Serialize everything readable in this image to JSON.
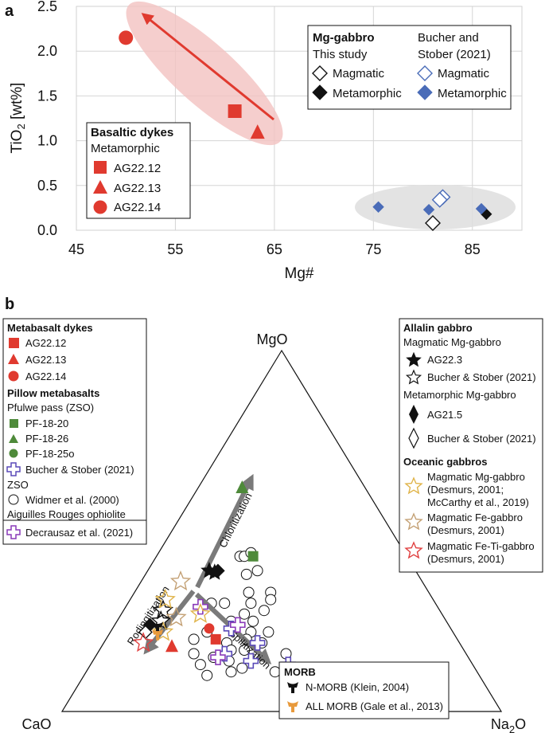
{
  "colors": {
    "basaltic": "#e03a2f",
    "pillow": "#4e8a3a",
    "bucher": "#4a6cb8",
    "mmg": "#e0b44a",
    "mfe": "#c4a175",
    "mfeti": "#e04040",
    "allmorb": "#e89a3c",
    "ellipse_red": "#f3c2c0",
    "ellipse_grey": "#dedede",
    "arrow_grey": "#7a7a7a"
  },
  "panel_a": {
    "label": "a",
    "chart_data": {
      "type": "scatter",
      "xlabel": "Mg#",
      "ylabel_main": "TiO",
      "ylabel_sub": "2",
      "ylabel_tail": " [wt%]",
      "xlim": [
        45,
        90
      ],
      "ylim": [
        0,
        2.5
      ],
      "xticks": [
        "45",
        "55",
        "65",
        "75",
        "85"
      ],
      "yticks": [
        "0.0",
        "0.5",
        "1.0",
        "1.5",
        "2.0",
        "2.5"
      ],
      "grid": true,
      "series": [
        {
          "name": "AG22.12",
          "marker": "square",
          "color": "#e03a2f",
          "points": [
            [
              61,
              1.33
            ]
          ]
        },
        {
          "name": "AG22.13",
          "marker": "triangle",
          "color": "#e03a2f",
          "points": [
            [
              63.3,
              1.09
            ]
          ]
        },
        {
          "name": "AG22.14",
          "marker": "circle",
          "color": "#e03a2f",
          "points": [
            [
              50,
              2.15
            ]
          ]
        },
        {
          "name": "This study Magmatic",
          "marker": "diamond-open",
          "color": "#111111",
          "points": [
            [
              81,
              0.08
            ]
          ]
        },
        {
          "name": "This study Metamorphic",
          "marker": "diamond-filled",
          "color": "#111111",
          "points": [
            [
              86.4,
              0.18
            ]
          ]
        },
        {
          "name": "Bucher and Stober (2021) Magmatic",
          "marker": "diamond-open",
          "color": "#4a6cb8",
          "points": [
            [
              82,
              0.37
            ],
            [
              81.7,
              0.34
            ]
          ]
        },
        {
          "name": "Bucher and Stober (2021) Metamorphic",
          "marker": "diamond-filled",
          "color": "#4a6cb8",
          "points": [
            [
              75.5,
              0.26
            ],
            [
              80.6,
              0.23
            ],
            [
              85.9,
              0.24
            ]
          ]
        }
      ],
      "legend_mg": {
        "title": "Mg-gabbro",
        "left_head": "This study",
        "right_head_1": "Bucher and",
        "right_head_2": "Stober (2021)",
        "magmatic": "Magmatic",
        "metamorphic": "Metamorphic"
      },
      "legend_basaltic": {
        "title": "Basaltic dykes",
        "subtitle": "Metamorphic",
        "items": [
          "AG22.12",
          "AG22.13",
          "AG22.14"
        ]
      }
    }
  },
  "panel_b": {
    "label": "b",
    "chart_data": {
      "type": "ternary",
      "vertices": {
        "top": "MgO",
        "left": "CaO",
        "right_main": "Na",
        "right_sub": "2",
        "right_tail": "O"
      },
      "arrows": [
        "Chloritization",
        "Rodingitization",
        "Spilitization"
      ],
      "ref_circles": [
        [
          0.43,
          0.38,
          0.19
        ],
        [
          0.43,
          0.37,
          0.2
        ],
        [
          0.44,
          0.35,
          0.21
        ],
        [
          0.39,
          0.36,
          0.25
        ],
        [
          0.38,
          0.39,
          0.23
        ],
        [
          0.33,
          0.36,
          0.31
        ],
        [
          0.31,
          0.37,
          0.32
        ],
        [
          0.33,
          0.41,
          0.26
        ],
        [
          0.3,
          0.42,
          0.28
        ],
        [
          0.28,
          0.4,
          0.32
        ],
        [
          0.3,
          0.48,
          0.22
        ],
        [
          0.27,
          0.45,
          0.28
        ],
        [
          0.25,
          0.44,
          0.31
        ],
        [
          0.25,
          0.49,
          0.26
        ],
        [
          0.22,
          0.46,
          0.32
        ],
        [
          0.22,
          0.42,
          0.36
        ],
        [
          0.2,
          0.48,
          0.32
        ],
        [
          0.19,
          0.45,
          0.36
        ],
        [
          0.17,
          0.5,
          0.33
        ],
        [
          0.19,
          0.53,
          0.28
        ],
        [
          0.17,
          0.53,
          0.3
        ],
        [
          0.15,
          0.58,
          0.27
        ],
        [
          0.16,
          0.62,
          0.22
        ],
        [
          0.13,
          0.62,
          0.25
        ],
        [
          0.14,
          0.55,
          0.31
        ],
        [
          0.12,
          0.53,
          0.35
        ],
        [
          0.11,
          0.56,
          0.33
        ],
        [
          0.1,
          0.62,
          0.28
        ],
        [
          0.11,
          0.46,
          0.43
        ],
        [
          0.16,
          0.41,
          0.43
        ],
        [
          0.3,
          0.51,
          0.19
        ],
        [
          0.22,
          0.56,
          0.22
        ],
        [
          0.2,
          0.6,
          0.2
        ]
      ],
      "points": [
        {
          "name": "AG22.12",
          "marker": "square",
          "color": "#e03a2f",
          "t": [
            0.2,
            0.55,
            0.25
          ]
        },
        {
          "name": "AG22.13",
          "marker": "triangle",
          "color": "#e03a2f",
          "t": [
            0.18,
            0.66,
            0.16
          ]
        },
        {
          "name": "AG22.14",
          "marker": "circle",
          "color": "#e03a2f",
          "t": [
            0.23,
            0.55,
            0.22
          ]
        },
        {
          "name": "PF-18-20",
          "marker": "square",
          "color": "#4e8a3a",
          "t": [
            0.43,
            0.35,
            0.22
          ]
        },
        {
          "name": "PF-18-26",
          "marker": "triangle",
          "color": "#4e8a3a",
          "t": [
            0.62,
            0.28,
            0.1
          ]
        },
        {
          "name": "AG22.3",
          "marker": "star-filled",
          "color": "#111111",
          "t": [
            0.39,
            0.47,
            0.14
          ]
        },
        {
          "name": "AG22.3",
          "marker": "star-filled",
          "color": "#111111",
          "t": [
            0.385,
            0.46,
            0.155
          ]
        },
        {
          "name": "AG21.5",
          "marker": "diamond-filled",
          "color": "#111111",
          "t": [
            0.39,
            0.45,
            0.16
          ]
        },
        {
          "name": "AG21.5",
          "marker": "diamond-filled",
          "color": "#111111",
          "t": [
            0.24,
            0.68,
            0.08
          ]
        },
        {
          "name": "Bucher & Stober (2021) magmatic",
          "marker": "star-open",
          "color": "#111111",
          "t": [
            0.28,
            0.63,
            0.09
          ]
        },
        {
          "name": "Bucher & Stober (2021) magmatic",
          "marker": "star-open",
          "color": "#111111",
          "t": [
            0.25,
            0.65,
            0.1
          ]
        },
        {
          "name": "Bucher & Stober (2021) metamorphic",
          "marker": "diamond-open",
          "color": "#111111",
          "t": [
            0.22,
            0.7,
            0.08
          ]
        },
        {
          "name": "Bucher & Stober (2021) pillow",
          "marker": "cross-open",
          "color": "#5a4ab8",
          "t": [
            0.23,
            0.5,
            0.27
          ]
        },
        {
          "name": "Bucher & Stober (2021) pillow",
          "marker": "cross-open",
          "color": "#5a4ab8",
          "t": [
            0.14,
            0.5,
            0.36
          ]
        },
        {
          "name": "Bucher & Stober (2021) pillow",
          "marker": "cross-open",
          "color": "#5a4ab8",
          "t": [
            0.13,
            0.42,
            0.45
          ]
        },
        {
          "name": "Bucher & Stober (2021) pillow",
          "marker": "cross-open",
          "color": "#5a4ab8",
          "t": [
            0.1,
            0.43,
            0.47
          ]
        },
        {
          "name": "Bucher & Stober (2021) pillow",
          "marker": "cross-open",
          "color": "#5a4ab8",
          "t": [
            0.19,
            0.46,
            0.35
          ]
        },
        {
          "name": "Bucher & Stober (2021) pillow",
          "marker": "cross-open",
          "color": "#5a4ab8",
          "t": [
            0.16,
            0.55,
            0.29
          ]
        },
        {
          "name": "Decrausaz et al. (2021)",
          "marker": "cross-open",
          "color": "#8a3ab8",
          "t": [
            0.29,
            0.54,
            0.17
          ]
        },
        {
          "name": "Decrausaz et al. (2021)",
          "marker": "cross-open",
          "color": "#8a3ab8",
          "t": [
            0.24,
            0.48,
            0.28
          ]
        },
        {
          "name": "Decrausaz et al. (2021)",
          "marker": "cross-open",
          "color": "#8a3ab8",
          "t": [
            0.15,
            0.57,
            0.28
          ]
        },
        {
          "name": "Magmatic Mg-gabbro",
          "marker": "star-open",
          "color": "#e0b44a",
          "t": [
            0.31,
            0.61,
            0.08
          ]
        },
        {
          "name": "Magmatic Mg-gabbro",
          "marker": "star-open",
          "color": "#e0b44a",
          "t": [
            0.27,
            0.55,
            0.18
          ]
        },
        {
          "name": "Magmatic Mg-gabbro",
          "marker": "star-open",
          "color": "#e0b44a",
          "t": [
            0.22,
            0.66,
            0.12
          ]
        },
        {
          "name": "Magmatic Fe-gabbro",
          "marker": "star-open",
          "color": "#c4a175",
          "t": [
            0.36,
            0.55,
            0.09
          ]
        },
        {
          "name": "Magmatic Fe-gabbro",
          "marker": "star-open",
          "color": "#c4a175",
          "t": [
            0.26,
            0.61,
            0.13
          ]
        },
        {
          "name": "Magmatic Fe-Ti-gabbro",
          "marker": "star-open",
          "color": "#e04040",
          "t": [
            0.19,
            0.72,
            0.09
          ]
        },
        {
          "name": "N-MORB",
          "marker": "morb",
          "color": "#111111",
          "t": [
            0.235,
            0.665,
            0.1
          ]
        },
        {
          "name": "ALL MORB",
          "marker": "morb",
          "color": "#e89a3c",
          "t": [
            0.215,
            0.675,
            0.11
          ]
        }
      ]
    },
    "legend_left": {
      "metabasalt_title": "Metabasalt dykes",
      "metabasalt_items": [
        "AG22.12",
        "AG22.13",
        "AG22.14"
      ],
      "pillow_title": "Pillow metabasalts",
      "pfulwe": "Pfulwe pass (ZSO)",
      "pillow_items": [
        "PF-18-20",
        "PF-18-26",
        "PF-18-25o"
      ],
      "bucher": "Bucher & Stober (2021)",
      "zso": "ZSO",
      "widmer": "Widmer et al. (2000)",
      "aiguilles": "Aiguilles Rouges ophiolite",
      "decrausaz": "Decrausaz et al. (2021)"
    },
    "legend_right": {
      "allalin_title": "Allalin gabbro",
      "magmatic_mg": "Magmatic Mg-gabbro",
      "ag223": "AG22.3",
      "bucher1": "Bucher & Stober (2021)",
      "metamorphic_mg": "Metamorphic Mg-gabbro",
      "ag215": "AG21.5",
      "bucher2": "Bucher & Stober (2021)",
      "oceanic_title": "Oceanic gabbros",
      "mmg_1": "Magmatic Mg-gabbro",
      "mmg_2": "(Desmurs, 2001;",
      "mmg_3": "McCarthy et al., 2019)",
      "mfe_1": "Magmatic Fe-gabbro",
      "mfe_2": "(Desmurs, 2001)",
      "mfeti_1": "Magmatic Fe-Ti-gabbro",
      "mfeti_2": "(Desmurs, 2001)"
    },
    "legend_morb": {
      "title": "MORB",
      "nmorb": "N-MORB (Klein, 2004)",
      "allmorb": "ALL MORB (Gale et al., 2013)"
    }
  }
}
